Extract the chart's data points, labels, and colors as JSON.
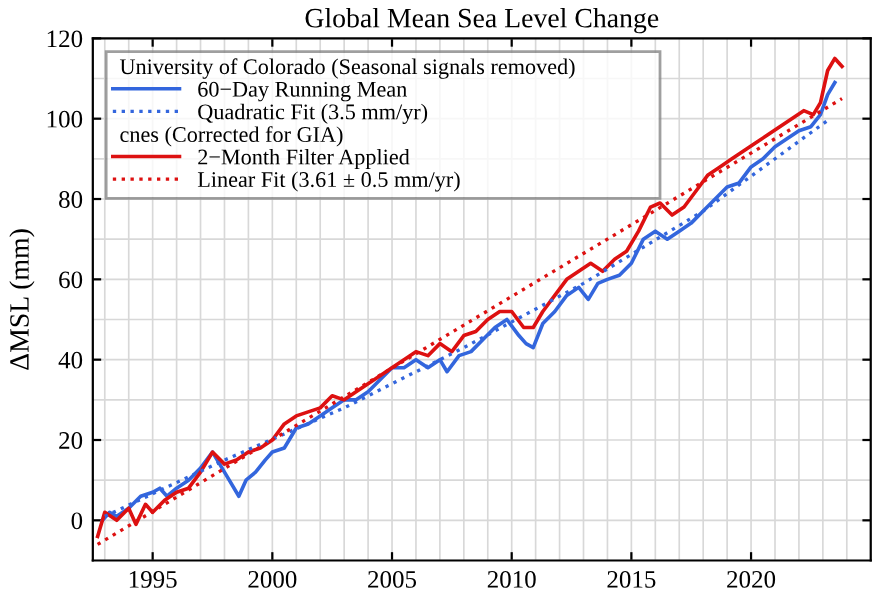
{
  "chart_data": {
    "type": "line",
    "title": "Global Mean Sea Level Change",
    "ylabel": "ΔMSL (mm)",
    "xlim": [
      1992.5,
      2025
    ],
    "xticks": [
      1995,
      2000,
      2005,
      2010,
      2015,
      2020
    ],
    "ylim": [
      -10,
      120
    ],
    "yticks": [
      0,
      20,
      40,
      60,
      80,
      100,
      120
    ],
    "grid": true,
    "legend": "top left",
    "annotations": [
      "University of Colorado (Seasonal signals removed)",
      "cnes (Corrected for GIA)"
    ],
    "series": [
      {
        "name": "60−Day Running Mean",
        "color": "#3366dd",
        "line_style": "solid",
        "x": [
          1992.9,
          1993.2,
          1993.5,
          1994,
          1994.5,
          1995,
          1995.3,
          1995.6,
          1996,
          1996.5,
          1997,
          1997.5,
          1997.8,
          1998.2,
          1998.6,
          1998.9,
          1999.3,
          1999.7,
          2000,
          2000.5,
          2001,
          2001.5,
          2002,
          2002.5,
          2003,
          2003.5,
          2004,
          2004.5,
          2005,
          2005.5,
          2006,
          2006.5,
          2007,
          2007.3,
          2007.8,
          2008.3,
          2008.8,
          2009.3,
          2009.8,
          2010.3,
          2010.6,
          2010.9,
          2011.3,
          2011.8,
          2012.3,
          2012.8,
          2013.2,
          2013.6,
          2014,
          2014.5,
          2015,
          2015.5,
          2016,
          2016.5,
          2017,
          2017.5,
          2018,
          2018.5,
          2019,
          2019.5,
          2020,
          2020.5,
          2021,
          2021.5,
          2022,
          2022.5,
          2022.9,
          2023.2,
          2023.5
        ],
        "values": [
          0,
          2,
          1,
          3,
          6,
          7,
          8,
          6,
          8,
          10,
          13,
          17,
          14,
          10,
          6,
          10,
          12,
          15,
          17,
          18,
          23,
          24,
          26,
          28,
          30,
          30,
          32,
          35,
          38,
          38,
          40,
          38,
          40,
          37,
          41,
          42,
          45,
          48,
          50,
          46,
          44,
          43,
          49,
          52,
          56,
          58,
          55,
          59,
          60,
          61,
          64,
          70,
          72,
          70,
          72,
          74,
          77,
          80,
          83,
          84,
          88,
          90,
          93,
          95,
          97,
          98,
          101,
          106,
          109
        ]
      },
      {
        "name": "Quadratic Fit (3.5 mm/yr)",
        "color": "#3366dd",
        "line_style": "dotted",
        "x": [
          1993,
          1998,
          2003,
          2008,
          2013,
          2018,
          2023.3
        ],
        "values": [
          1,
          15,
          28,
          43,
          59,
          77,
          100
        ]
      },
      {
        "name": "2−Month Filter Applied",
        "color": "#dd1111",
        "line_style": "solid",
        "x": [
          1992.7,
          1993,
          1993.5,
          1994,
          1994.3,
          1994.7,
          1995,
          1995.5,
          1996,
          1996.5,
          1997,
          1997.5,
          1998,
          1998.5,
          1999,
          1999.5,
          2000,
          2000.5,
          2001,
          2001.5,
          2002,
          2002.5,
          2003,
          2003.5,
          2004,
          2004.5,
          2005,
          2005.5,
          2006,
          2006.5,
          2007,
          2007.5,
          2008,
          2008.5,
          2009,
          2009.5,
          2010,
          2010.5,
          2010.9,
          2011.3,
          2011.8,
          2012.3,
          2012.8,
          2013.3,
          2013.8,
          2014.3,
          2014.8,
          2015.3,
          2015.8,
          2016.2,
          2016.7,
          2017.2,
          2017.7,
          2018.2,
          2018.7,
          2019.2,
          2019.7,
          2020.2,
          2020.7,
          2021.2,
          2021.7,
          2022.2,
          2022.6,
          2022.9,
          2023.2,
          2023.5,
          2023.8
        ],
        "values": [
          -4,
          2,
          0,
          3,
          -1,
          4,
          2,
          5,
          7,
          8,
          12,
          17,
          14,
          15,
          17,
          18,
          20,
          24,
          26,
          27,
          28,
          31,
          30,
          32,
          34,
          36,
          38,
          40,
          42,
          41,
          44,
          42,
          46,
          47,
          50,
          52,
          52,
          48,
          48,
          52,
          56,
          60,
          62,
          64,
          62,
          65,
          67,
          72,
          78,
          79,
          76,
          78,
          82,
          86,
          88,
          90,
          92,
          94,
          96,
          98,
          100,
          102,
          101,
          104,
          112,
          115,
          113
        ]
      },
      {
        "name": "Linear Fit (3.61 ± 0.5 mm/yr)",
        "color": "#dd1111",
        "line_style": "dotted",
        "x": [
          1992.7,
          2023.8
        ],
        "values": [
          -6,
          105
        ]
      }
    ]
  }
}
